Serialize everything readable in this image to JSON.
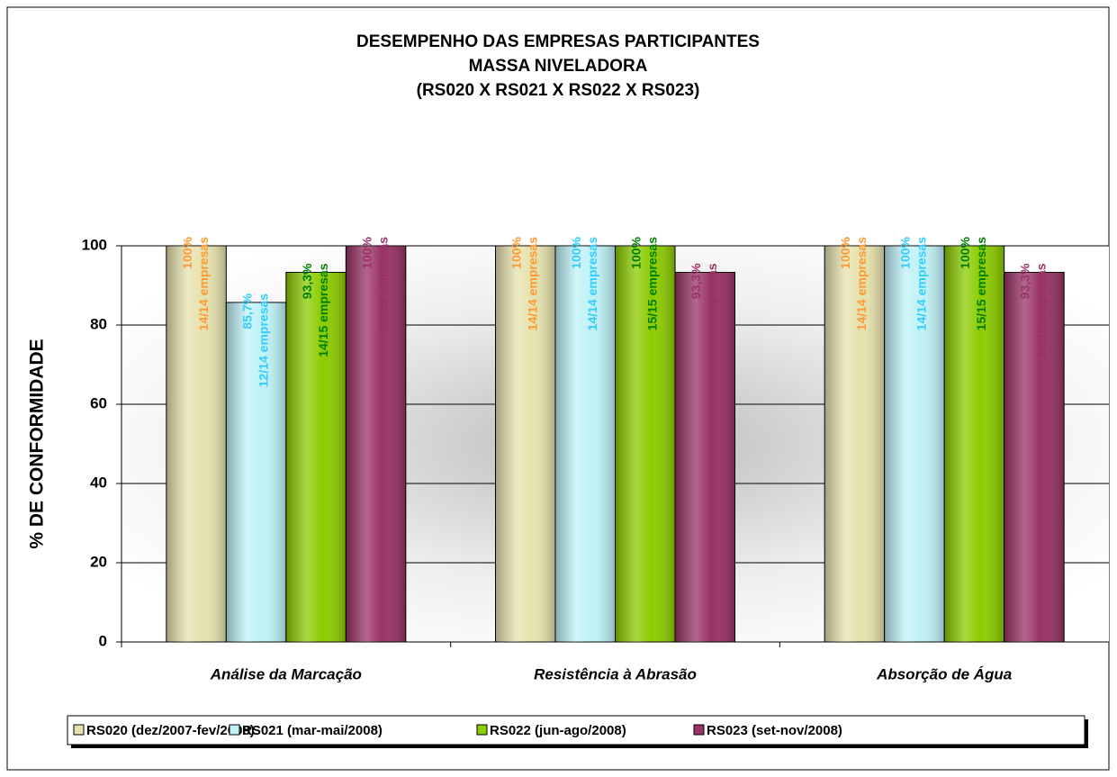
{
  "chart_data": {
    "type": "bar",
    "title": [
      "DESEMPENHO DAS EMPRESAS PARTICIPANTES",
      "MASSA NIVELADORA",
      "(RS020 X RS021 X RS022 X RS023)"
    ],
    "y_label": "% DE CONFORMIDADE",
    "categories": [
      "Análise da Marcação",
      "Resistência à Abrasão",
      "Absorção de Água"
    ],
    "series": [
      {
        "name": "RS020 (dez/2007-fev/2008)",
        "color": "#e6e2ae",
        "label_color": "#ff9933",
        "values": [
          100,
          100,
          100
        ],
        "value_labels": [
          "100%",
          "100%",
          "100%"
        ],
        "count_labels": [
          "14/14 empresas",
          "14/14 empresas",
          "14/14 empresas"
        ]
      },
      {
        "name": "RS021 (mar-mai/2008)",
        "color": "#bff2f7",
        "label_color": "#33ccff",
        "values": [
          85.7,
          100,
          100
        ],
        "value_labels": [
          "85,7%",
          "100%",
          "100%"
        ],
        "count_labels": [
          "12/14 empresas",
          "14/14 empresas",
          "14/14 empresas"
        ]
      },
      {
        "name": "RS022 (jun-ago/2008)",
        "color": "#8ccc00",
        "label_color": "#008000",
        "values": [
          93.3,
          100,
          100
        ],
        "value_labels": [
          "93,3%",
          "100%",
          "100%"
        ],
        "count_labels": [
          "14/15 empresas",
          "15/15 empresas",
          "15/15 empresas"
        ]
      },
      {
        "name": "RS023 (set-nov/2008)",
        "color": "#993366",
        "label_color": "#993366",
        "values": [
          100,
          93.3,
          93.3
        ],
        "value_labels": [
          "100%",
          "93,3%",
          "93,3%"
        ],
        "count_labels": [
          "15/15 empresas",
          "14/15 empresas",
          "14/15 empresas"
        ]
      }
    ],
    "ylim": [
      0,
      100
    ],
    "yticks": [
      0,
      20,
      40,
      60,
      80,
      100
    ],
    "grid": true,
    "legend": "bottom"
  }
}
